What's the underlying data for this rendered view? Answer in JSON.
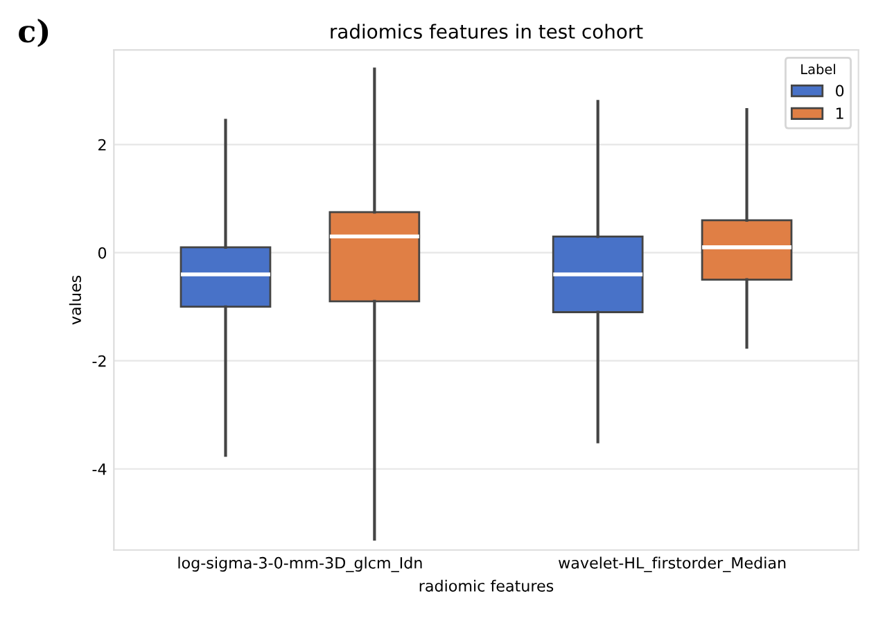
{
  "chart_data": {
    "type": "box",
    "title": "radiomics features in test cohort",
    "xlabel": "radiomic features",
    "ylabel": "values",
    "legend_title": "Label",
    "annotations": [
      "c)"
    ],
    "categories": [
      "log-sigma-3-0-mm-3D_glcm_Idn",
      "wavelet-HL_firstorder_Median"
    ],
    "series": [
      {
        "name": "0",
        "color": "#4872c8",
        "boxes": [
          {
            "low": -3.75,
            "q1": -1.0,
            "median": -0.4,
            "q3": 0.1,
            "high": 2.45
          },
          {
            "low": -3.5,
            "q1": -1.1,
            "median": -0.4,
            "q3": 0.3,
            "high": 2.8
          }
        ]
      },
      {
        "name": "1",
        "color": "#e07f45",
        "boxes": [
          {
            "low": -5.3,
            "q1": -0.9,
            "median": 0.3,
            "q3": 0.75,
            "high": 3.4
          },
          {
            "low": -1.75,
            "q1": -0.5,
            "median": 0.1,
            "q3": 0.6,
            "high": 2.65
          }
        ]
      }
    ],
    "ylim": [
      -5.5,
      3.75
    ],
    "yticks": [
      -4,
      -2,
      0,
      2
    ],
    "grid": "y",
    "legend": "top right"
  }
}
